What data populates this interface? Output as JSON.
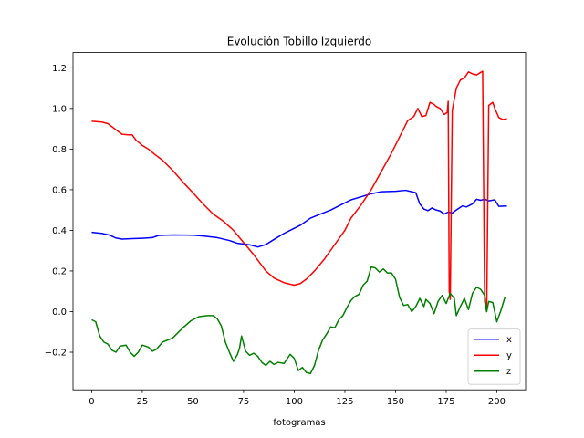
{
  "chart_data": {
    "type": "line",
    "title": "Evolución Tobillo Izquierdo",
    "xlabel": "fotogramas",
    "ylabel": "",
    "xlim": [
      -9.2,
      214.2
    ],
    "ylim": [
      -0.385,
      1.275
    ],
    "xticks": [
      0,
      25,
      50,
      75,
      100,
      125,
      150,
      175,
      200
    ],
    "yticks": [
      -0.2,
      0.0,
      0.2,
      0.4,
      0.6,
      0.8,
      1.0,
      1.2
    ],
    "ytick_labels": [
      "−0.2",
      "0.0",
      "0.2",
      "0.4",
      "0.6",
      "0.8",
      "1.0",
      "1.2"
    ],
    "grid": false,
    "legend_position": "lower-right",
    "series": [
      {
        "name": "x",
        "color": "#0000ff",
        "points": [
          [
            0,
            0.39
          ],
          [
            5,
            0.385
          ],
          [
            9,
            0.376
          ],
          [
            12,
            0.362
          ],
          [
            15,
            0.357
          ],
          [
            20,
            0.359
          ],
          [
            25,
            0.361
          ],
          [
            30,
            0.364
          ],
          [
            33,
            0.375
          ],
          [
            40,
            0.377
          ],
          [
            50,
            0.376
          ],
          [
            55,
            0.372
          ],
          [
            62,
            0.364
          ],
          [
            68,
            0.35
          ],
          [
            72,
            0.336
          ],
          [
            78,
            0.329
          ],
          [
            82,
            0.318
          ],
          [
            86,
            0.33
          ],
          [
            90,
            0.355
          ],
          [
            95,
            0.385
          ],
          [
            100,
            0.41
          ],
          [
            103,
            0.425
          ],
          [
            108,
            0.46
          ],
          [
            113,
            0.48
          ],
          [
            118,
            0.5
          ],
          [
            123,
            0.525
          ],
          [
            128,
            0.55
          ],
          [
            133,
            0.565
          ],
          [
            138,
            0.58
          ],
          [
            143,
            0.59
          ],
          [
            150,
            0.592
          ],
          [
            155,
            0.597
          ],
          [
            158,
            0.59
          ],
          [
            160,
            0.585
          ],
          [
            162,
            0.53
          ],
          [
            164,
            0.505
          ],
          [
            166,
            0.497
          ],
          [
            168,
            0.51
          ],
          [
            170,
            0.5
          ],
          [
            172,
            0.495
          ],
          [
            174,
            0.48
          ],
          [
            176,
            0.49
          ],
          [
            178,
            0.485
          ],
          [
            180,
            0.5
          ],
          [
            183,
            0.52
          ],
          [
            185,
            0.515
          ],
          [
            188,
            0.53
          ],
          [
            190,
            0.553
          ],
          [
            192,
            0.548
          ],
          [
            194,
            0.553
          ],
          [
            196,
            0.545
          ],
          [
            199,
            0.55
          ],
          [
            201,
            0.518
          ],
          [
            205,
            0.52
          ]
        ]
      },
      {
        "name": "y",
        "color": "#ff0000",
        "points": [
          [
            0,
            0.937
          ],
          [
            5,
            0.933
          ],
          [
            8,
            0.925
          ],
          [
            12,
            0.895
          ],
          [
            15,
            0.873
          ],
          [
            18,
            0.87
          ],
          [
            20,
            0.87
          ],
          [
            22,
            0.843
          ],
          [
            25,
            0.818
          ],
          [
            28,
            0.8
          ],
          [
            31,
            0.775
          ],
          [
            35,
            0.745
          ],
          [
            40,
            0.695
          ],
          [
            45,
            0.638
          ],
          [
            50,
            0.585
          ],
          [
            55,
            0.53
          ],
          [
            60,
            0.48
          ],
          [
            65,
            0.445
          ],
          [
            70,
            0.4
          ],
          [
            75,
            0.34
          ],
          [
            80,
            0.28
          ],
          [
            83,
            0.24
          ],
          [
            86,
            0.2
          ],
          [
            90,
            0.165
          ],
          [
            95,
            0.142
          ],
          [
            100,
            0.13
          ],
          [
            103,
            0.138
          ],
          [
            106,
            0.16
          ],
          [
            110,
            0.2
          ],
          [
            115,
            0.26
          ],
          [
            120,
            0.33
          ],
          [
            125,
            0.4
          ],
          [
            128,
            0.46
          ],
          [
            133,
            0.525
          ],
          [
            138,
            0.6
          ],
          [
            143,
            0.69
          ],
          [
            148,
            0.78
          ],
          [
            153,
            0.88
          ],
          [
            156,
            0.94
          ],
          [
            159,
            0.96
          ],
          [
            161,
            1.0
          ],
          [
            163,
            0.96
          ],
          [
            165,
            0.965
          ],
          [
            167,
            1.03
          ],
          [
            169,
            1.02
          ],
          [
            170,
            1.01
          ],
          [
            172,
            1.0
          ],
          [
            174,
            0.97
          ],
          [
            175.5,
            0.98
          ],
          [
            176,
            1.035
          ],
          [
            176.5,
            0.1
          ],
          [
            177,
            0.06
          ],
          [
            178,
            0.99
          ],
          [
            180,
            1.1
          ],
          [
            182,
            1.14
          ],
          [
            184,
            1.15
          ],
          [
            186,
            1.18
          ],
          [
            188,
            1.17
          ],
          [
            190,
            1.165
          ],
          [
            193,
            1.183
          ],
          [
            194,
            0.05
          ],
          [
            195,
            0.0
          ],
          [
            196,
            1.015
          ],
          [
            198,
            1.03
          ],
          [
            199,
            1.0
          ],
          [
            201,
            0.955
          ],
          [
            203,
            0.945
          ],
          [
            205,
            0.95
          ]
        ]
      },
      {
        "name": "z",
        "color": "#008000",
        "points": [
          [
            0,
            -0.04
          ],
          [
            2,
            -0.05
          ],
          [
            4,
            -0.12
          ],
          [
            6,
            -0.15
          ],
          [
            8,
            -0.16
          ],
          [
            10,
            -0.19
          ],
          [
            12,
            -0.2
          ],
          [
            14,
            -0.17
          ],
          [
            17,
            -0.165
          ],
          [
            19,
            -0.2
          ],
          [
            21,
            -0.22
          ],
          [
            23,
            -0.2
          ],
          [
            25,
            -0.165
          ],
          [
            28,
            -0.175
          ],
          [
            30,
            -0.195
          ],
          [
            32,
            -0.185
          ],
          [
            35,
            -0.15
          ],
          [
            40,
            -0.13
          ],
          [
            45,
            -0.08
          ],
          [
            49,
            -0.045
          ],
          [
            53,
            -0.025
          ],
          [
            57,
            -0.02
          ],
          [
            60,
            -0.02
          ],
          [
            62,
            -0.035
          ],
          [
            64,
            -0.07
          ],
          [
            66,
            -0.15
          ],
          [
            68,
            -0.2
          ],
          [
            70,
            -0.245
          ],
          [
            72,
            -0.21
          ],
          [
            73,
            -0.18
          ],
          [
            74,
            -0.12
          ],
          [
            76,
            -0.195
          ],
          [
            78,
            -0.215
          ],
          [
            80,
            -0.205
          ],
          [
            82,
            -0.22
          ],
          [
            84,
            -0.25
          ],
          [
            86,
            -0.265
          ],
          [
            88,
            -0.245
          ],
          [
            90,
            -0.26
          ],
          [
            92,
            -0.25
          ],
          [
            95,
            -0.255
          ],
          [
            98,
            -0.21
          ],
          [
            100,
            -0.23
          ],
          [
            102,
            -0.29
          ],
          [
            104,
            -0.275
          ],
          [
            106,
            -0.3
          ],
          [
            108,
            -0.305
          ],
          [
            110,
            -0.265
          ],
          [
            112,
            -0.19
          ],
          [
            114,
            -0.14
          ],
          [
            116,
            -0.11
          ],
          [
            118,
            -0.075
          ],
          [
            120,
            -0.08
          ],
          [
            122,
            -0.04
          ],
          [
            124,
            -0.02
          ],
          [
            126,
            0.02
          ],
          [
            128,
            0.055
          ],
          [
            130,
            0.075
          ],
          [
            132,
            0.085
          ],
          [
            134,
            0.13
          ],
          [
            136,
            0.15
          ],
          [
            138,
            0.22
          ],
          [
            140,
            0.215
          ],
          [
            142,
            0.195
          ],
          [
            144,
            0.21
          ],
          [
            146,
            0.19
          ],
          [
            148,
            0.19
          ],
          [
            150,
            0.16
          ],
          [
            152,
            0.07
          ],
          [
            154,
            0.03
          ],
          [
            156,
            0.035
          ],
          [
            158,
            0.0
          ],
          [
            160,
            0.025
          ],
          [
            162,
            0.065
          ],
          [
            164,
            0.025
          ],
          [
            165,
            0.06
          ],
          [
            167,
            0.04
          ],
          [
            169,
            -0.01
          ],
          [
            171,
            0.05
          ],
          [
            173,
            0.08
          ],
          [
            175,
            0.04
          ],
          [
            177,
            0.09
          ],
          [
            179,
            0.065
          ],
          [
            180,
            -0.02
          ],
          [
            182,
            0.025
          ],
          [
            184,
            0.065
          ],
          [
            186,
            0.01
          ],
          [
            188,
            0.09
          ],
          [
            190,
            0.12
          ],
          [
            192,
            0.11
          ],
          [
            194,
            0.08
          ],
          [
            195,
            0.0
          ],
          [
            196,
            0.05
          ],
          [
            198,
            0.045
          ],
          [
            200,
            -0.05
          ],
          [
            202,
            0.005
          ],
          [
            204,
            0.07
          ]
        ]
      }
    ]
  }
}
